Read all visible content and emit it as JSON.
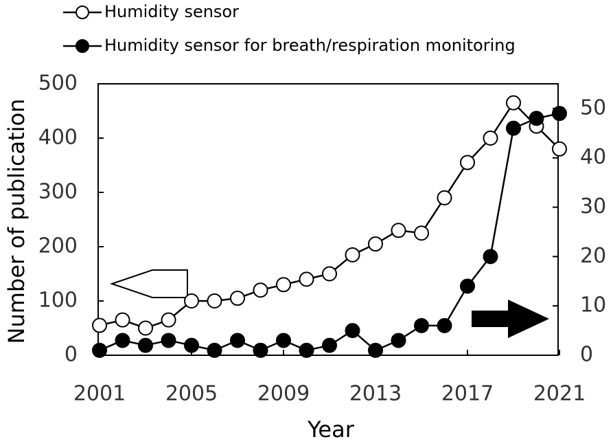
{
  "chart_data": {
    "type": "line",
    "x_label": "Year",
    "y_label": "Number of publication",
    "x": [
      2001,
      2002,
      2003,
      2004,
      2005,
      2006,
      2007,
      2008,
      2009,
      2010,
      2011,
      2012,
      2013,
      2014,
      2015,
      2016,
      2017,
      2018,
      2019,
      2020,
      2021
    ],
    "series": [
      {
        "name": "Humidity sensor",
        "color": "#000000",
        "marker_fill": "#ffffff",
        "values": [
          55,
          65,
          50,
          65,
          100,
          100,
          105,
          120,
          130,
          140,
          150,
          185,
          205,
          230,
          225,
          290,
          355,
          400,
          465,
          422,
          380
        ]
      },
      {
        "name": "Humidity sensor for breath/respiration monitoring",
        "color": "#000000",
        "marker_fill": "#000000",
        "axis": "y2",
        "values": [
          1,
          3,
          2,
          3,
          2,
          1,
          3,
          1,
          3,
          1,
          2,
          5,
          1,
          3,
          6,
          6,
          14,
          20,
          46,
          48,
          49
        ]
      }
    ],
    "xlim": [
      2001,
      2021
    ],
    "xticks": [
      2001,
      2005,
      2009,
      2013,
      2017,
      2021
    ],
    "ylim": [
      0,
      500
    ],
    "yticks": [
      0,
      100,
      200,
      300,
      400,
      500
    ],
    "y2lim": [
      0,
      55
    ],
    "y2ticks": [
      0,
      10,
      20,
      30,
      40,
      50
    ]
  }
}
